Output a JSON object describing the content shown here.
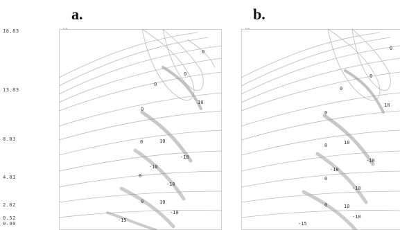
{
  "panels": [
    {
      "label": "a."
    },
    {
      "label": "b."
    }
  ],
  "y_ticks": [
    "18.83",
    "13.83",
    "8.83",
    "4.83",
    "2.02",
    "0.52",
    "0.00"
  ],
  "panel_corner_marks": [
    "10",
    "10"
  ],
  "contour_labels": [
    "0",
    "0",
    "0",
    "0",
    "0",
    "0",
    "10",
    "-10",
    "-10",
    "10",
    "10",
    "-10",
    "0",
    "-10",
    "-15"
  ],
  "colors": {
    "contour": "#b9b9b9",
    "shade": "#9a9a9a",
    "frame": "#cfcfcf"
  }
}
